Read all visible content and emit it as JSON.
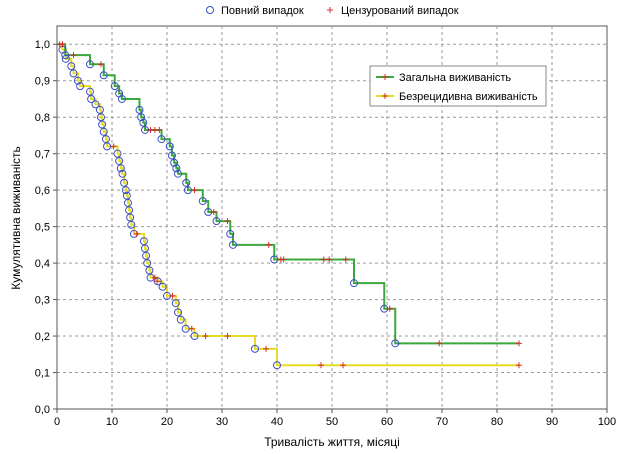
{
  "chart_data": {
    "type": "line",
    "xlabel": "Тривалість життя, місяці",
    "ylabel": "Кумулятивна виживаність",
    "xlim": [
      0,
      100
    ],
    "ylim": [
      0,
      1.05
    ],
    "grid": true,
    "x_ticks": [
      0,
      10,
      20,
      30,
      40,
      50,
      60,
      70,
      80,
      90,
      100
    ],
    "x_tick_labels": [
      "0",
      "10",
      "20",
      "30",
      "40",
      "50",
      "60",
      "70",
      "80",
      "90",
      "100"
    ],
    "y_ticks": [
      0,
      0.1,
      0.2,
      0.3,
      0.4,
      0.5,
      0.6,
      0.7,
      0.8,
      0.9,
      1.0
    ],
    "y_tick_labels": [
      "0,0",
      "0,1",
      "0,2",
      "0,3",
      "0,4",
      "0,5",
      "0,6",
      "0,7",
      "0,8",
      "0,9",
      "1,0"
    ],
    "marker_legend_position": "top",
    "marker_legend": [
      {
        "label": "Повний випадок",
        "marker": "circle",
        "color": "#3b4fc8"
      },
      {
        "label": "Цензурований випадок",
        "marker": "plus",
        "color": "#d92c2c"
      }
    ],
    "legend_position": "top-right",
    "series": [
      {
        "name": "Загальна виживаність",
        "color": "#3aa83a",
        "end_x": 84,
        "steps": [
          [
            0,
            1.0
          ],
          [
            1.5,
            0.97
          ],
          [
            6,
            0.945
          ],
          [
            8.5,
            0.915
          ],
          [
            10.5,
            0.885
          ],
          [
            11.3,
            0.865
          ],
          [
            11.8,
            0.85
          ],
          [
            15,
            0.82
          ],
          [
            15.3,
            0.8
          ],
          [
            15.7,
            0.785
          ],
          [
            16,
            0.765
          ],
          [
            19,
            0.74
          ],
          [
            20.5,
            0.72
          ],
          [
            20.9,
            0.695
          ],
          [
            21.3,
            0.675
          ],
          [
            21.7,
            0.66
          ],
          [
            22,
            0.645
          ],
          [
            23.5,
            0.62
          ],
          [
            23.8,
            0.6
          ],
          [
            26.5,
            0.57
          ],
          [
            27.5,
            0.54
          ],
          [
            29,
            0.515
          ],
          [
            31.5,
            0.48
          ],
          [
            32,
            0.45
          ],
          [
            39.5,
            0.41
          ],
          [
            54,
            0.345
          ],
          [
            59.5,
            0.275
          ],
          [
            61.5,
            0.18
          ]
        ],
        "censored": [
          [
            1,
            1.0
          ],
          [
            3,
            0.97
          ],
          [
            8,
            0.945
          ],
          [
            17,
            0.765
          ],
          [
            17.8,
            0.765
          ],
          [
            18.6,
            0.765
          ],
          [
            25,
            0.6
          ],
          [
            28.5,
            0.54
          ],
          [
            31,
            0.515
          ],
          [
            38.5,
            0.45
          ],
          [
            40.7,
            0.41
          ],
          [
            41.2,
            0.41
          ],
          [
            48.5,
            0.41
          ],
          [
            49.5,
            0.41
          ],
          [
            52.5,
            0.41
          ],
          [
            60.5,
            0.275
          ],
          [
            69.5,
            0.18
          ],
          [
            84,
            0.18
          ]
        ]
      },
      {
        "name": "Безрецидивна виживаність",
        "color": "#e6dc22",
        "end_x": 84,
        "steps": [
          [
            0,
            1.0
          ],
          [
            1,
            0.985
          ],
          [
            1.6,
            0.96
          ],
          [
            2.6,
            0.94
          ],
          [
            3,
            0.92
          ],
          [
            3.8,
            0.9
          ],
          [
            4.2,
            0.885
          ],
          [
            6,
            0.87
          ],
          [
            6.2,
            0.85
          ],
          [
            7,
            0.835
          ],
          [
            7.8,
            0.82
          ],
          [
            8,
            0.8
          ],
          [
            8.2,
            0.78
          ],
          [
            8.5,
            0.76
          ],
          [
            8.9,
            0.74
          ],
          [
            9.1,
            0.72
          ],
          [
            11,
            0.7
          ],
          [
            11.3,
            0.68
          ],
          [
            11.6,
            0.66
          ],
          [
            11.9,
            0.645
          ],
          [
            12.2,
            0.62
          ],
          [
            12.5,
            0.6
          ],
          [
            12.7,
            0.585
          ],
          [
            12.9,
            0.565
          ],
          [
            13.1,
            0.545
          ],
          [
            13.3,
            0.525
          ],
          [
            13.5,
            0.505
          ],
          [
            14,
            0.48
          ],
          [
            15.8,
            0.46
          ],
          [
            16,
            0.44
          ],
          [
            16.2,
            0.42
          ],
          [
            16.4,
            0.4
          ],
          [
            16.8,
            0.38
          ],
          [
            17,
            0.36
          ],
          [
            18.3,
            0.35
          ],
          [
            19.2,
            0.335
          ],
          [
            20,
            0.31
          ],
          [
            21.6,
            0.29
          ],
          [
            22,
            0.265
          ],
          [
            22.5,
            0.245
          ],
          [
            23.4,
            0.22
          ],
          [
            25,
            0.2
          ],
          [
            36,
            0.165
          ],
          [
            40,
            0.12
          ]
        ],
        "censored": [
          [
            0.5,
            1.0
          ],
          [
            10.3,
            0.72
          ],
          [
            14.5,
            0.48
          ],
          [
            17.8,
            0.36
          ],
          [
            18.2,
            0.35
          ],
          [
            21,
            0.31
          ],
          [
            24.5,
            0.22
          ],
          [
            27,
            0.2
          ],
          [
            31,
            0.2
          ],
          [
            38,
            0.165
          ],
          [
            48,
            0.12
          ],
          [
            52,
            0.12
          ],
          [
            84,
            0.12
          ]
        ]
      }
    ]
  }
}
